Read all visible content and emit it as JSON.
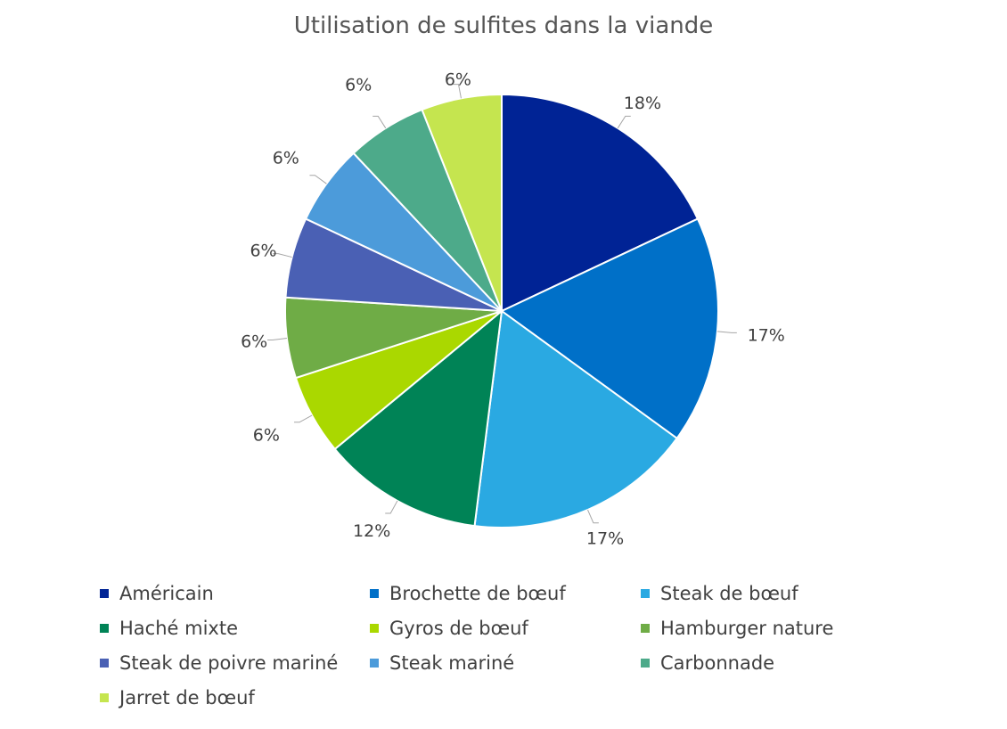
{
  "chart_data": {
    "type": "pie",
    "title": "Utilisation de sulfites dans la viande",
    "legend_position": "bottom",
    "unit": "%",
    "slices": [
      {
        "name": "Américain",
        "value": 18,
        "label": "18%",
        "color": "#002395"
      },
      {
        "name": "Brochette de bœuf",
        "value": 17,
        "label": "17%",
        "color": "#0070C8"
      },
      {
        "name": "Steak de bœuf",
        "value": 17,
        "label": "17%",
        "color": "#2AA9E2"
      },
      {
        "name": "Haché mixte",
        "value": 12,
        "label": "12%",
        "color": "#008356"
      },
      {
        "name": "Gyros de bœuf",
        "value": 6,
        "label": "6%",
        "color": "#AAD800"
      },
      {
        "name": "Hamburger nature",
        "value": 6,
        "label": "6%",
        "color": "#6FAC46"
      },
      {
        "name": "Steak de poivre mariné",
        "value": 6,
        "label": "6%",
        "color": "#4A60B4"
      },
      {
        "name": "Steak mariné",
        "value": 6,
        "label": "6%",
        "color": "#4C9BDA"
      },
      {
        "name": "Carbonnade",
        "value": 6,
        "label": "6%",
        "color": "#4DAA8A"
      },
      {
        "name": "Jarret de bœuf",
        "value": 6,
        "label": "6%",
        "color": "#C5E54F"
      }
    ]
  }
}
